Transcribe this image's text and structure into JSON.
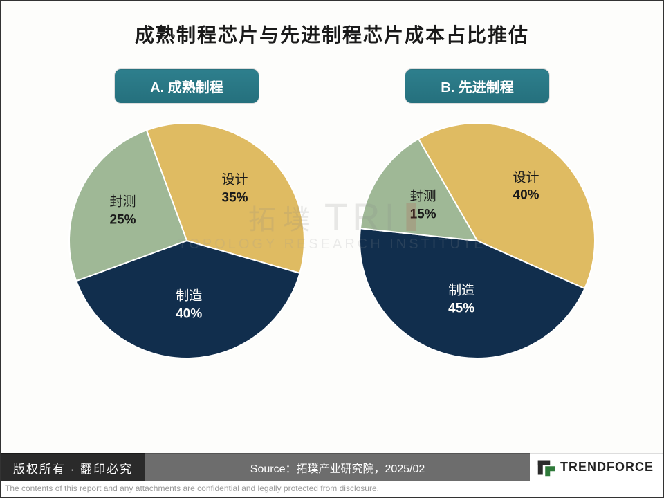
{
  "title": "成熟制程芯片与先进制程芯片成本占比推估",
  "title_fontsize": 28,
  "title_color": "#1a1a1a",
  "background_color": "#fdfdfb",
  "header_fill": "#25707d",
  "header_text_color": "#ffffff",
  "header_fontsize": 20,
  "charts": [
    {
      "id": "chart_a",
      "header": "A. 成熟制程",
      "type": "pie",
      "radius": 170,
      "start_angle_deg": -20,
      "slices": [
        {
          "label": "设计",
          "value": 35,
          "color": "#dfbb62",
          "text_color": "#1a1a1a",
          "label_offset": 0.6
        },
        {
          "label": "制造",
          "value": 40,
          "color": "#112e4d",
          "text_color": "#fdfdfb",
          "label_offset": 0.55
        },
        {
          "label": "封测",
          "value": 25,
          "color": "#9fb896",
          "text_color": "#1a1a1a",
          "label_offset": 0.6
        }
      ],
      "slice_border_color": "#ffffff",
      "slice_border_width": 2,
      "label_fontsize": 19
    },
    {
      "id": "chart_b",
      "header": "B. 先进制程",
      "type": "pie",
      "radius": 170,
      "start_angle_deg": -30,
      "slices": [
        {
          "label": "设计",
          "value": 40,
          "color": "#dfbb62",
          "text_color": "#1a1a1a",
          "label_offset": 0.62
        },
        {
          "label": "制造",
          "value": 45,
          "color": "#112e4d",
          "text_color": "#fdfdfb",
          "label_offset": 0.52
        },
        {
          "label": "封测",
          "value": 15,
          "color": "#9fb896",
          "text_color": "#1a1a1a",
          "label_offset": 0.55
        }
      ],
      "slice_border_color": "#ffffff",
      "slice_border_width": 2,
      "label_fontsize": 19
    }
  ],
  "watermark": {
    "cn": "拓墣",
    "en": "TRI",
    "accent_color": "#b9443a",
    "subtitle": "TOPOLOGY RESEARCH INSTITUTE"
  },
  "footer": {
    "copyright": "版权所有 · 翻印必究",
    "copyright_bg": "#2a2a2a",
    "source": "Source：拓璞产业研究院，2025/02",
    "source_bg": "#6d6d6d",
    "logo_text": "TRENDFORCE",
    "logo_colors": {
      "dark": "#2b2b2b",
      "accent": "#2f7a3a"
    },
    "disclaimer": "The contents of this report and any attachments are confidential and legally protected from disclosure.",
    "disclaimer_color": "#9a9a9a"
  }
}
